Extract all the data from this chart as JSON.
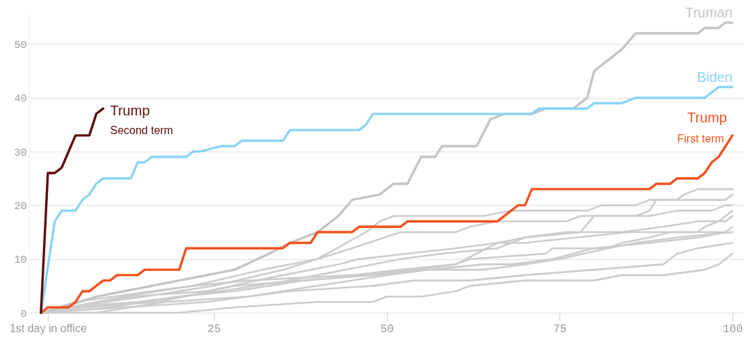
{
  "chart_data": {
    "type": "line",
    "xlim": [
      -1.7,
      101.8
    ],
    "ylim": [
      0,
      56
    ],
    "xticks": [
      {
        "value": 1,
        "label": "1st day in office"
      },
      25,
      50,
      75,
      100
    ],
    "yticks": [
      0,
      10,
      20,
      30,
      40,
      50
    ],
    "grid": "y",
    "series": [
      {
        "color": "#cccccc",
        "x": [
          0,
          12,
          22,
          32,
          40,
          47,
          49,
          51,
          64,
          68,
          79,
          81,
          86,
          88,
          92,
          93,
          95,
          100
        ],
        "values": [
          0,
          3,
          5,
          8,
          10,
          15,
          17,
          18,
          18,
          19,
          19,
          20,
          20,
          21,
          21,
          22,
          23,
          23
        ]
      },
      {
        "color": "#cccccc",
        "x": [
          0,
          4,
          15,
          25,
          35,
          45,
          52,
          60,
          62,
          66,
          76,
          78,
          86,
          88,
          89,
          99,
          100
        ],
        "values": [
          0,
          1,
          3,
          5,
          8,
          12,
          15,
          15,
          16,
          17,
          17,
          18,
          18,
          19,
          21,
          21,
          22
        ]
      },
      {
        "color": "#cccccc",
        "x": [
          0,
          9,
          13,
          24,
          35,
          43,
          46,
          53,
          60,
          66,
          70,
          78,
          80,
          88,
          92,
          97,
          99,
          100
        ],
        "values": [
          0,
          2,
          3,
          4,
          7,
          9,
          10,
          11,
          12,
          13,
          14,
          15,
          18,
          18,
          19,
          19,
          20,
          20
        ]
      },
      {
        "color": "#cccccc",
        "x": [
          0,
          6,
          17,
          28,
          38,
          47,
          54,
          60,
          62,
          73,
          74,
          82,
          84,
          88,
          91,
          95,
          96,
          98,
          100
        ],
        "values": [
          0,
          1,
          2,
          5,
          6,
          7,
          8,
          9,
          10,
          11,
          12,
          12,
          13,
          14,
          15,
          15,
          16,
          17,
          19
        ]
      },
      {
        "color": "#cccccc",
        "x": [
          0,
          3,
          14,
          26,
          36,
          44,
          52,
          58,
          66,
          70,
          76,
          84,
          90,
          95,
          97,
          99,
          100
        ],
        "values": [
          0,
          1,
          2,
          4,
          6,
          8,
          10,
          11,
          12,
          14,
          15,
          15,
          16,
          17,
          17,
          17,
          18
        ]
      },
      {
        "color": "#cccccc",
        "x": [
          0,
          8,
          18,
          30,
          40,
          50,
          56,
          64,
          68,
          74,
          80,
          88,
          95,
          99,
          100
        ],
        "values": [
          0,
          0,
          2,
          3,
          5,
          7,
          8,
          9,
          9,
          10,
          12,
          13,
          14,
          15,
          16
        ]
      },
      {
        "color": "#cccccc",
        "x": [
          0,
          5,
          16,
          22,
          30,
          45,
          52,
          60,
          66,
          70,
          85,
          99
        ],
        "values": [
          0,
          2,
          4,
          5,
          6,
          7,
          8,
          9,
          13,
          13,
          15,
          15
        ]
      },
      {
        "color": "#cccccc",
        "x": [
          0,
          10,
          20,
          28,
          38,
          48,
          55,
          64,
          70,
          75,
          82,
          86,
          92,
          100
        ],
        "values": [
          0,
          1,
          3,
          4,
          6,
          7,
          8,
          8,
          9,
          10,
          12,
          13,
          14,
          15
        ]
      },
      {
        "color": "#cccccc",
        "x": [
          0,
          12,
          24,
          36,
          48,
          54,
          62,
          70,
          80,
          90,
          92,
          95,
          100
        ],
        "values": [
          0,
          1,
          2,
          4,
          5,
          6,
          6,
          7,
          8,
          9,
          11,
          12,
          13
        ]
      },
      {
        "color": "#cccccc",
        "x": [
          0,
          20,
          28,
          40,
          48,
          50,
          55,
          60,
          62,
          70,
          80,
          84,
          90,
          96,
          98,
          100
        ],
        "values": [
          0,
          0,
          1,
          2,
          2,
          3,
          3,
          4,
          5,
          6,
          6,
          7,
          7,
          8,
          9,
          11
        ]
      },
      {
        "name": "Truman",
        "color": "#c4c4c4",
        "x": [
          0,
          3,
          8,
          12,
          20,
          28,
          33,
          36,
          40,
          43,
          45,
          49,
          51,
          53,
          55,
          57,
          58,
          63,
          65,
          67,
          71,
          73,
          77,
          79,
          80,
          84,
          86,
          95,
          96,
          98,
          99,
          100
        ],
        "values": [
          0,
          1,
          3,
          4,
          6,
          8,
          11,
          13,
          15,
          18,
          21,
          22,
          24,
          24,
          29,
          29,
          31,
          31,
          36,
          37,
          37,
          38,
          38,
          40,
          45,
          49,
          52,
          52,
          53,
          53,
          54,
          54
        ]
      },
      {
        "name": "Biden",
        "color": "#8ad4f5",
        "x": [
          0,
          2,
          3,
          5,
          6,
          7,
          8,
          9,
          13,
          14,
          15,
          16,
          21,
          22,
          23,
          26,
          28,
          29,
          35,
          36,
          46,
          47,
          48,
          71,
          72,
          79,
          80,
          84,
          86,
          96,
          98,
          100
        ],
        "values": [
          0,
          17,
          19,
          19,
          21,
          22,
          24,
          25,
          25,
          28,
          28,
          29,
          29,
          30,
          30,
          31,
          31,
          32,
          32,
          34,
          34,
          35,
          37,
          37,
          38,
          38,
          39,
          39,
          40,
          40,
          42,
          42
        ]
      },
      {
        "name": "Trump",
        "color": "#f4511e",
        "x": [
          0,
          1,
          4,
          5,
          6,
          7,
          9,
          10,
          11,
          14,
          15,
          20,
          21,
          35,
          36,
          39,
          40,
          45,
          46,
          52,
          53,
          66,
          69,
          70,
          71,
          88,
          89,
          91,
          92,
          95,
          96,
          97,
          98,
          100
        ],
        "values": [
          0,
          1,
          1,
          2,
          4,
          4,
          6,
          6,
          7,
          7,
          8,
          8,
          12,
          12,
          13,
          13,
          15,
          15,
          16,
          16,
          17,
          17,
          20,
          20,
          23,
          23,
          24,
          24,
          25,
          25,
          26,
          28,
          29,
          33
        ]
      },
      {
        "name": "Trump",
        "color": "#5e0b0b",
        "x": [
          0,
          1,
          2,
          3,
          5,
          7,
          8,
          9
        ],
        "values": [
          0,
          26,
          26,
          27,
          33,
          33,
          37,
          38
        ]
      }
    ],
    "annotations": [
      {
        "text": "First term",
        "x": 100,
        "y": 33
      },
      {
        "text": "Second term",
        "x": 9,
        "y": 38
      }
    ]
  }
}
